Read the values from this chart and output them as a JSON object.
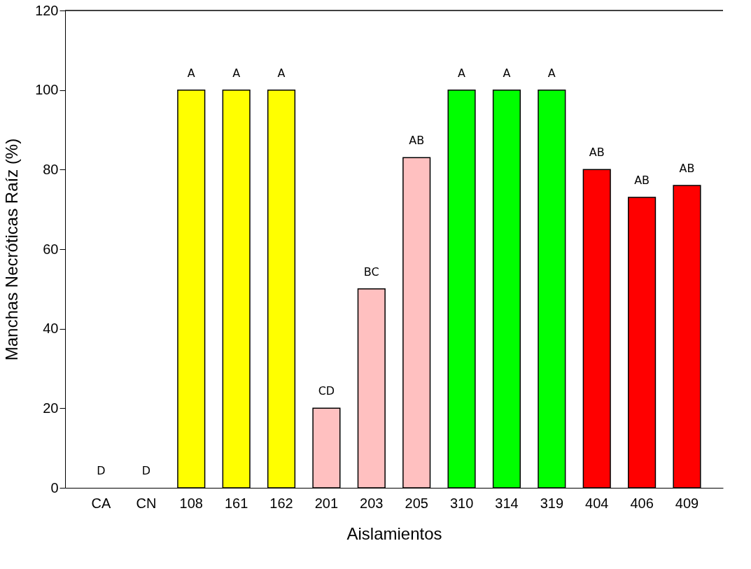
{
  "chart_data": {
    "type": "bar",
    "xlabel": "Aislamientos",
    "ylabel": "Manchas Necróticas Raíz (%)",
    "categories": [
      "CA",
      "CN",
      "108",
      "161",
      "162",
      "201",
      "203",
      "205",
      "310",
      "314",
      "319",
      "404",
      "406",
      "409"
    ],
    "values": [
      0,
      0,
      100,
      100,
      100,
      20,
      50,
      83,
      100,
      100,
      100,
      80,
      73,
      76
    ],
    "colors": [
      "#ffff00",
      "#ffff00",
      "#ffff00",
      "#ffff00",
      "#ffff00",
      "#ffc0c0",
      "#ffc0c0",
      "#ffc0c0",
      "#00ff00",
      "#00ff00",
      "#00ff00",
      "#ff0000",
      "#ff0000",
      "#ff0000"
    ],
    "value_labels": [
      "D",
      "D",
      "A",
      "A",
      "A",
      "CD",
      "BC",
      "AB",
      "A",
      "A",
      "A",
      "AB",
      "AB",
      "AB"
    ],
    "ylim": [
      0,
      120
    ],
    "yticks": [
      0,
      20,
      40,
      60,
      80,
      100,
      120
    ],
    "grid": false
  }
}
